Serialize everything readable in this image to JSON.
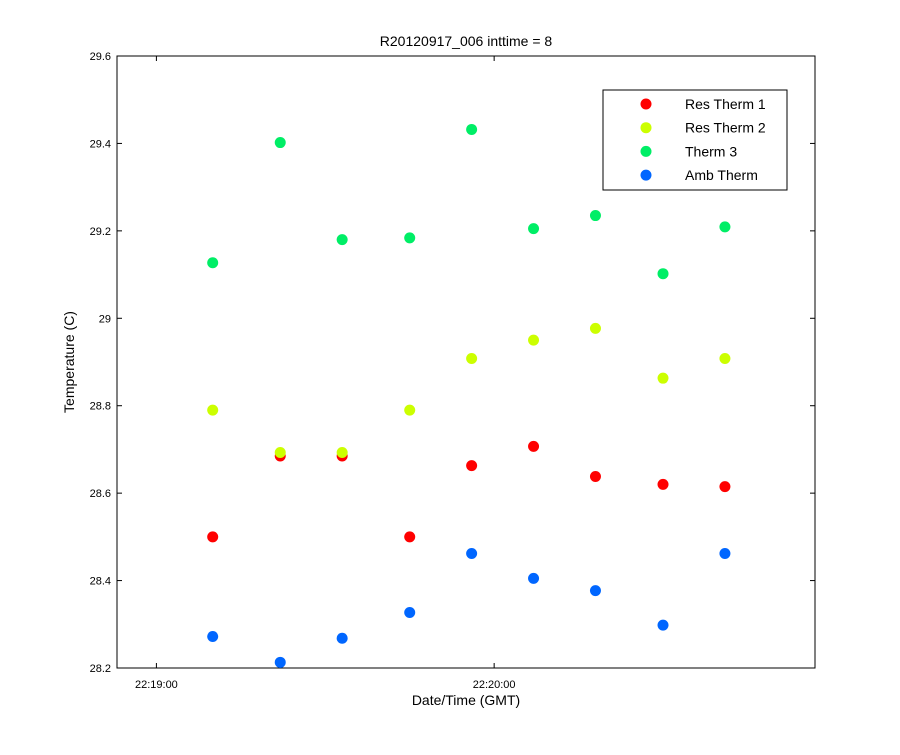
{
  "chart_data": {
    "type": "scatter",
    "title": "R20120917_006 inttime = 8",
    "xlabel": "Date/Time (GMT)",
    "ylabel": "Temperature (C)",
    "xlim": [
      "22:18:53",
      "22:20:57"
    ],
    "ylim": [
      28.2,
      29.6
    ],
    "x_ticks": [
      "22:19:00",
      "22:20:00"
    ],
    "y_ticks": [
      "28.2",
      "28.4",
      "28.6",
      "28.8",
      "29",
      "29.2",
      "29.4",
      "29.6"
    ],
    "grid": false,
    "legend_position": "top-right",
    "x": [
      "22:19:10",
      "22:19:22",
      "22:19:33",
      "22:19:45",
      "22:19:56",
      "22:20:07",
      "22:20:18",
      "22:20:30",
      "22:20:41"
    ],
    "series": [
      {
        "name": "Res Therm 1",
        "color": "#ff0000",
        "values": [
          28.5,
          28.685,
          28.685,
          28.5,
          28.663,
          28.707,
          28.638,
          28.62,
          28.615
        ]
      },
      {
        "name": "Res Therm 2",
        "color": "#ccff00",
        "values": [
          28.79,
          28.693,
          28.693,
          28.79,
          28.908,
          28.95,
          28.977,
          28.863,
          28.908
        ]
      },
      {
        "name": "Therm 3",
        "color": "#00ee66",
        "values": [
          29.127,
          29.402,
          29.18,
          29.184,
          29.432,
          29.205,
          29.235,
          29.102,
          29.209
        ]
      },
      {
        "name": "Amb Therm",
        "color": "#0066ff",
        "values": [
          28.272,
          28.213,
          28.268,
          28.327,
          28.462,
          28.405,
          28.377,
          28.298,
          28.462
        ]
      }
    ]
  }
}
